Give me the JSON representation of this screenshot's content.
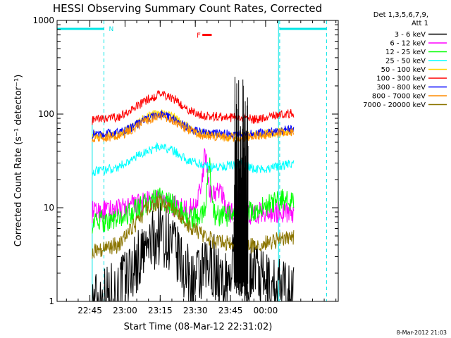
{
  "chart_data": {
    "type": "line",
    "title": "HESSI Observing Summary Count Rates, Corrected",
    "xlabel": "Start Time (08-Mar-12 22:31:02)",
    "ylabel": "Corrected Count Rate (s⁻¹ detector⁻¹)",
    "yscale": "log",
    "ylim": [
      1,
      1000
    ],
    "y_ticks": [
      {
        "v": 1,
        "label": "1"
      },
      {
        "v": 10,
        "label": "10"
      },
      {
        "v": 100,
        "label": "100"
      },
      {
        "v": 1000,
        "label": "1000"
      }
    ],
    "x_unit": "minutes after 22:31:02",
    "xlim": [
      0,
      120
    ],
    "x_ticks": [
      {
        "t": 14,
        "label": "22:45"
      },
      {
        "t": 29,
        "label": "23:00"
      },
      {
        "t": 44,
        "label": "23:15"
      },
      {
        "t": 59,
        "label": "23:30"
      },
      {
        "t": 74,
        "label": "23:45"
      },
      {
        "t": 89,
        "label": "00:00"
      }
    ],
    "legend_header": [
      "Det 1,3,5,6,7,9,",
      "Att 1"
    ],
    "legend_position": "right, outside plot",
    "grid": false,
    "data_start": 15,
    "data_end": 101,
    "night_bar": {
      "label": "N",
      "color": "#00e5e5",
      "intervals": [
        [
          0,
          20
        ],
        [
          95,
          115
        ]
      ]
    },
    "flare_marker": {
      "label": "F",
      "color": "#ff0000",
      "start": 62,
      "end": 66,
      "y": 700
    },
    "series": [
      {
        "name": "3 - 6 keV",
        "color": "#000000",
        "points": [
          [
            15,
            1.0
          ],
          [
            26,
            1.3
          ],
          [
            32,
            2.2
          ],
          [
            38,
            3.5
          ],
          [
            44,
            5.5
          ],
          [
            48,
            4.5
          ],
          [
            54,
            2.2
          ],
          [
            58,
            1.5
          ],
          [
            63,
            2.0
          ],
          [
            67,
            2.5
          ],
          [
            71,
            1.3
          ],
          [
            76,
            3.0
          ],
          [
            78,
            15
          ],
          [
            80,
            1.5
          ],
          [
            84,
            2.5
          ],
          [
            88,
            1.5
          ],
          [
            94,
            1.4
          ],
          [
            101,
            1.2
          ]
        ]
      },
      {
        "name": "6 - 12 keV",
        "color": "#ff00ff",
        "points": [
          [
            15,
            9
          ],
          [
            26,
            9.5
          ],
          [
            32,
            10.5
          ],
          [
            38,
            11.5
          ],
          [
            44,
            12
          ],
          [
            50,
            10.5
          ],
          [
            55,
            9.5
          ],
          [
            58,
            10
          ],
          [
            62,
            18
          ],
          [
            63,
            42
          ],
          [
            65,
            15
          ],
          [
            68,
            14
          ],
          [
            70,
            16
          ],
          [
            72,
            10
          ],
          [
            75,
            8.5
          ],
          [
            78,
            14
          ],
          [
            80,
            9
          ],
          [
            84,
            8.5
          ],
          [
            88,
            9
          ],
          [
            94,
            9
          ],
          [
            101,
            9
          ]
        ]
      },
      {
        "name": "12 - 25 keV",
        "color": "#00ff00",
        "points": [
          [
            15,
            7
          ],
          [
            26,
            7.5
          ],
          [
            32,
            9
          ],
          [
            38,
            11
          ],
          [
            44,
            12.5
          ],
          [
            50,
            10.5
          ],
          [
            55,
            8
          ],
          [
            58,
            7.5
          ],
          [
            63,
            9
          ],
          [
            65,
            30
          ],
          [
            67,
            8.5
          ],
          [
            72,
            8
          ],
          [
            75,
            8
          ],
          [
            78,
            9
          ],
          [
            84,
            9
          ],
          [
            90,
            10.5
          ],
          [
            95,
            12
          ],
          [
            101,
            12
          ]
        ]
      },
      {
        "name": "25 - 50 keV",
        "color": "#00ffff",
        "points": [
          [
            15,
            24
          ],
          [
            26,
            27
          ],
          [
            32,
            33
          ],
          [
            38,
            40
          ],
          [
            44,
            45
          ],
          [
            50,
            40
          ],
          [
            55,
            33
          ],
          [
            60,
            30
          ],
          [
            66,
            27
          ],
          [
            72,
            28
          ],
          [
            78,
            30
          ],
          [
            84,
            26
          ],
          [
            90,
            26
          ],
          [
            96,
            28
          ],
          [
            101,
            30
          ]
        ]
      },
      {
        "name": "50 - 100 keV",
        "color": "#ffd700",
        "points": [
          [
            15,
            59
          ],
          [
            26,
            60
          ],
          [
            32,
            72
          ],
          [
            38,
            92
          ],
          [
            44,
            105
          ],
          [
            50,
            92
          ],
          [
            55,
            75
          ],
          [
            60,
            64
          ],
          [
            66,
            60
          ],
          [
            72,
            58
          ],
          [
            78,
            57
          ],
          [
            84,
            60
          ],
          [
            90,
            62
          ],
          [
            96,
            65
          ],
          [
            101,
            66
          ]
        ]
      },
      {
        "name": "100 - 300 keV",
        "color": "#ff0000",
        "points": [
          [
            15,
            86
          ],
          [
            26,
            92
          ],
          [
            32,
            110
          ],
          [
            38,
            140
          ],
          [
            44,
            165
          ],
          [
            50,
            145
          ],
          [
            55,
            115
          ],
          [
            60,
            100
          ],
          [
            66,
            95
          ],
          [
            72,
            93
          ],
          [
            78,
            90
          ],
          [
            84,
            88
          ],
          [
            90,
            92
          ],
          [
            96,
            100
          ],
          [
            101,
            102
          ]
        ]
      },
      {
        "name": "300 - 800 keV",
        "color": "#0000ff",
        "points": [
          [
            15,
            61
          ],
          [
            26,
            63
          ],
          [
            32,
            72
          ],
          [
            38,
            90
          ],
          [
            44,
            100
          ],
          [
            50,
            90
          ],
          [
            55,
            74
          ],
          [
            60,
            65
          ],
          [
            66,
            62
          ],
          [
            72,
            61
          ],
          [
            78,
            60
          ],
          [
            84,
            62
          ],
          [
            90,
            64
          ],
          [
            96,
            67
          ],
          [
            101,
            70
          ]
        ]
      },
      {
        "name": "800 - 7000 keV",
        "color": "#ff8c00",
        "points": [
          [
            15,
            56
          ],
          [
            26,
            58
          ],
          [
            32,
            68
          ],
          [
            38,
            86
          ],
          [
            44,
            96
          ],
          [
            50,
            86
          ],
          [
            55,
            70
          ],
          [
            60,
            61
          ],
          [
            66,
            58
          ],
          [
            72,
            57
          ],
          [
            78,
            55
          ],
          [
            84,
            58
          ],
          [
            90,
            60
          ],
          [
            96,
            63
          ],
          [
            101,
            65
          ]
        ]
      },
      {
        "name": "7000 - 20000 keV",
        "color": "#8b7500",
        "points": [
          [
            15,
            3.5
          ],
          [
            26,
            4.0
          ],
          [
            32,
            6.0
          ],
          [
            38,
            9.5
          ],
          [
            44,
            11.5
          ],
          [
            50,
            9.5
          ],
          [
            55,
            7
          ],
          [
            60,
            5.5
          ],
          [
            66,
            4.5
          ],
          [
            72,
            4.2
          ],
          [
            78,
            4.0
          ],
          [
            84,
            4.0
          ],
          [
            90,
            4.2
          ],
          [
            96,
            4.6
          ],
          [
            101,
            4.8
          ]
        ]
      }
    ]
  },
  "footer": {
    "timestamp": "8-Mar-2012 21:03"
  }
}
